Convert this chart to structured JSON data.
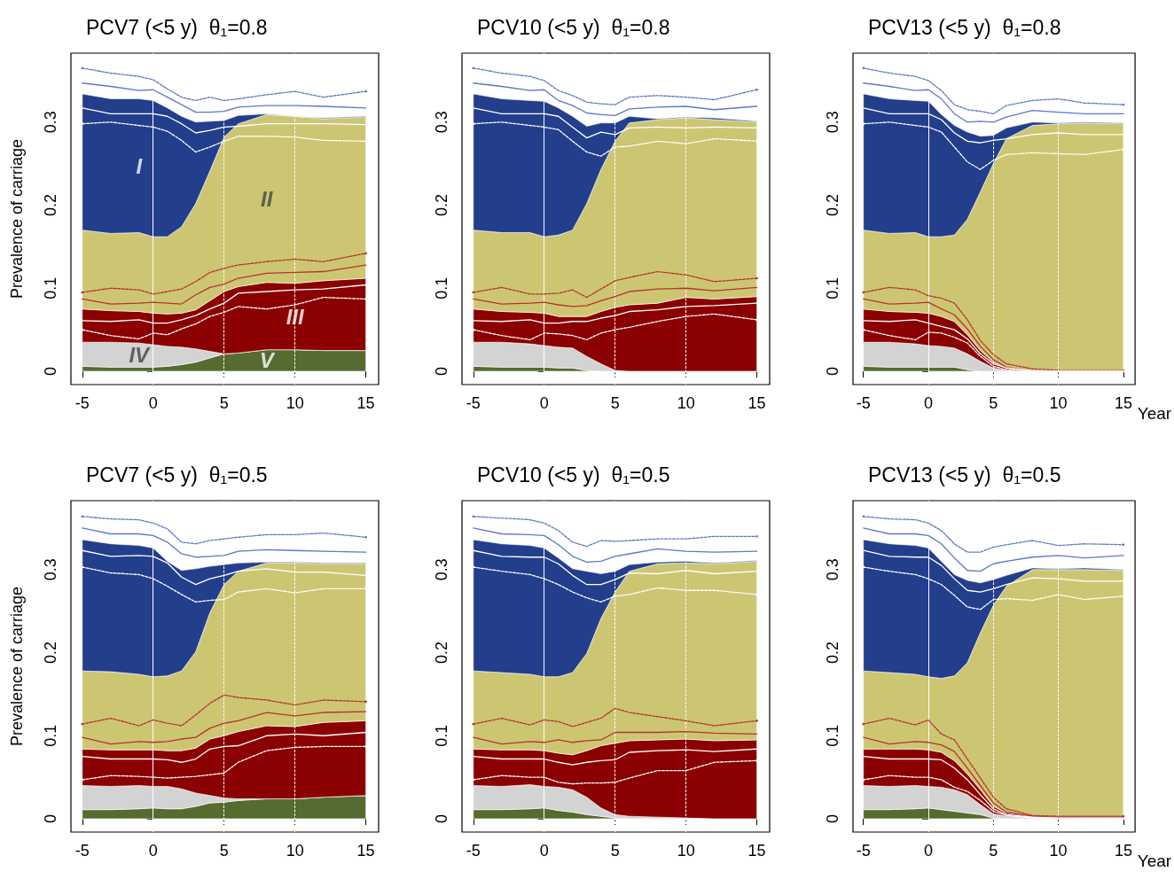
{
  "chart_data": [
    {
      "type": "area",
      "title": "PCV7 (<5 y)  θ₁=0.8",
      "ylabel": "Prevalence of carriage",
      "stacked": true,
      "xlim": [
        -5.8,
        15.9
      ],
      "xticks": [
        -5,
        0,
        5,
        10,
        15
      ],
      "ylim": [
        -0.016,
        0.383
      ],
      "yticks": [
        0,
        0.1,
        0.2,
        0.3
      ],
      "x": [
        -5,
        -3,
        -1,
        0,
        1,
        2,
        3,
        4,
        5,
        6,
        8,
        10,
        12,
        15
      ],
      "ref_lines": [
        {
          "axis": "x",
          "value": 0,
          "color": "#ffffff",
          "line_style": "solid"
        },
        {
          "axis": "x",
          "value": 5,
          "color": "#ffffff",
          "line_style": "dashed"
        },
        {
          "axis": "x",
          "value": 10,
          "color": "#ffffff",
          "line_style": "dashed"
        }
      ],
      "series": [
        {
          "type": "area",
          "name": "V",
          "color": "#556b2f",
          "values": [
            0.006,
            0.005,
            0.005,
            0.005,
            0.006,
            0.008,
            0.011,
            0.016,
            0.021,
            0.022,
            0.026,
            0.026,
            0.025,
            0.025
          ]
        },
        {
          "type": "area",
          "name": "IV",
          "color": "#d3d3d3",
          "values": [
            0.029,
            0.03,
            0.029,
            0.027,
            0.024,
            0.021,
            0.016,
            0.008,
            0,
            0,
            0,
            0,
            0,
            0
          ]
        },
        {
          "type": "area",
          "name": "III",
          "color": "#8b0000",
          "values": [
            0.04,
            0.038,
            0.038,
            0.038,
            0.039,
            0.041,
            0.047,
            0.061,
            0.075,
            0.08,
            0.081,
            0.08,
            0.084,
            0.087
          ]
        },
        {
          "type": "area",
          "name": "II",
          "color": "#ccc673",
          "values": [
            0.095,
            0.093,
            0.095,
            0.092,
            0.093,
            0.104,
            0.128,
            0.156,
            0.186,
            0.196,
            0.202,
            0.201,
            0.195,
            0.194
          ]
        },
        {
          "type": "area",
          "name": "I",
          "color": "#233e8b",
          "values": [
            0.164,
            0.162,
            0.161,
            0.164,
            0.155,
            0.133,
            0.098,
            0.06,
            0.02,
            0.01,
            0.001,
            0,
            0.001,
            0.001
          ]
        },
        {
          "type": "line",
          "color": "#5a78c6",
          "line_style": "solid",
          "values": [
            0.347,
            0.343,
            0.338,
            0.339,
            0.33,
            0.321,
            0.312,
            0.312,
            0.313,
            0.318,
            0.32,
            0.32,
            0.319,
            0.317
          ]
        },
        {
          "type": "line",
          "color": "#5a78c6",
          "line_style": "dashed",
          "values": [
            0.365,
            0.359,
            0.355,
            0.351,
            0.34,
            0.33,
            0.326,
            0.33,
            0.326,
            0.328,
            0.333,
            0.337,
            0.33,
            0.337
          ]
        },
        {
          "type": "line",
          "color": "#ffffff",
          "line_style": "solid",
          "values": [
            0.317,
            0.31,
            0.31,
            0.31,
            0.307,
            0.298,
            0.287,
            0.29,
            0.294,
            0.295,
            0.298,
            0.298,
            0.298,
            0.297
          ]
        },
        {
          "type": "line",
          "color": "#ffffff",
          "line_style": "dashed",
          "values": [
            0.298,
            0.3,
            0.296,
            0.294,
            0.289,
            0.278,
            0.264,
            0.27,
            0.277,
            0.283,
            0.283,
            0.282,
            0.278,
            0.277
          ]
        },
        {
          "type": "line",
          "color": "#b8312f",
          "line_style": "dashed",
          "values": [
            0.095,
            0.1,
            0.098,
            0.093,
            0.096,
            0.099,
            0.108,
            0.119,
            0.124,
            0.128,
            0.132,
            0.135,
            0.132,
            0.142
          ]
        },
        {
          "type": "line",
          "color": "#b8312f",
          "line_style": "solid",
          "values": [
            0.087,
            0.081,
            0.082,
            0.083,
            0.082,
            0.081,
            0.092,
            0.101,
            0.105,
            0.112,
            0.118,
            0.119,
            0.12,
            0.128
          ]
        },
        {
          "type": "line",
          "color": "#ffffff",
          "line_style": "solid",
          "values": [
            0.061,
            0.06,
            0.062,
            0.058,
            0.058,
            0.062,
            0.067,
            0.075,
            0.082,
            0.094,
            0.096,
            0.098,
            0.099,
            0.104
          ]
        },
        {
          "type": "line",
          "color": "#ffffff",
          "line_style": "dashed",
          "values": [
            0.05,
            0.043,
            0.039,
            0.046,
            0.044,
            0.051,
            0.057,
            0.066,
            0.071,
            0.078,
            0.075,
            0.08,
            0.089,
            0.087
          ]
        }
      ]
    },
    {
      "type": "area",
      "title": "PCV10 (<5 y)  θ₁=0.8",
      "stacked": true,
      "xlim": [
        -5.8,
        15.9
      ],
      "xticks": [
        -5,
        0,
        5,
        10,
        15
      ],
      "ylim": [
        -0.016,
        0.383
      ],
      "yticks": [
        0,
        0.1,
        0.2,
        0.3
      ],
      "x": [
        -5,
        -3,
        -1,
        0,
        1,
        2,
        3,
        4,
        5,
        6,
        8,
        10,
        12,
        15
      ],
      "ref_lines": [
        {
          "axis": "x",
          "value": 0,
          "color": "#ffffff",
          "line_style": "solid"
        },
        {
          "axis": "x",
          "value": 5,
          "color": "#ffffff",
          "line_style": "dashed"
        },
        {
          "axis": "x",
          "value": 10,
          "color": "#ffffff",
          "line_style": "dashed"
        }
      ],
      "series": [
        {
          "type": "area",
          "color": "#556b2f",
          "values": [
            0.006,
            0.005,
            0.005,
            0.005,
            0.004,
            0.004,
            0.001,
            0,
            0,
            0,
            0,
            0,
            0,
            0
          ]
        },
        {
          "type": "area",
          "color": "#d3d3d3",
          "values": [
            0.029,
            0.03,
            0.028,
            0.026,
            0.025,
            0.024,
            0.017,
            0.009,
            0.001,
            0,
            0,
            0,
            0,
            0
          ]
        },
        {
          "type": "area",
          "color": "#8b0000",
          "values": [
            0.04,
            0.037,
            0.038,
            0.039,
            0.037,
            0.038,
            0.048,
            0.063,
            0.076,
            0.08,
            0.082,
            0.089,
            0.087,
            0.09
          ]
        },
        {
          "type": "area",
          "color": "#ccc673",
          "values": [
            0.095,
            0.095,
            0.096,
            0.092,
            0.098,
            0.104,
            0.136,
            0.171,
            0.2,
            0.219,
            0.221,
            0.216,
            0.216,
            0.21
          ]
        },
        {
          "type": "area",
          "color": "#233e8b",
          "values": [
            0.164,
            0.161,
            0.159,
            0.163,
            0.153,
            0.137,
            0.093,
            0.056,
            0.022,
            0.008,
            0.001,
            0.001,
            0.002,
            0.001
          ]
        },
        {
          "type": "line",
          "color": "#5a78c6",
          "line_style": "solid",
          "values": [
            0.347,
            0.343,
            0.338,
            0.339,
            0.326,
            0.32,
            0.311,
            0.309,
            0.308,
            0.316,
            0.318,
            0.319,
            0.315,
            0.319
          ]
        },
        {
          "type": "line",
          "color": "#5a78c6",
          "line_style": "dashed",
          "values": [
            0.365,
            0.359,
            0.355,
            0.35,
            0.338,
            0.332,
            0.324,
            0.322,
            0.321,
            0.33,
            0.332,
            0.33,
            0.327,
            0.339
          ]
        },
        {
          "type": "line",
          "color": "#ffffff",
          "line_style": "solid",
          "values": [
            0.317,
            0.31,
            0.31,
            0.31,
            0.307,
            0.294,
            0.281,
            0.288,
            0.285,
            0.293,
            0.294,
            0.293,
            0.294,
            0.293
          ]
        },
        {
          "type": "line",
          "color": "#ffffff",
          "line_style": "dashed",
          "values": [
            0.298,
            0.3,
            0.296,
            0.294,
            0.291,
            0.277,
            0.264,
            0.259,
            0.27,
            0.271,
            0.277,
            0.274,
            0.28,
            0.277
          ]
        },
        {
          "type": "line",
          "color": "#b8312f",
          "line_style": "dashed",
          "values": [
            0.095,
            0.101,
            0.093,
            0.093,
            0.094,
            0.098,
            0.089,
            0.099,
            0.109,
            0.113,
            0.12,
            0.116,
            0.108,
            0.112
          ]
        },
        {
          "type": "line",
          "color": "#b8312f",
          "line_style": "solid",
          "values": [
            0.087,
            0.081,
            0.082,
            0.083,
            0.08,
            0.078,
            0.079,
            0.085,
            0.09,
            0.096,
            0.099,
            0.1,
            0.097,
            0.101
          ]
        },
        {
          "type": "line",
          "color": "#ffffff",
          "line_style": "solid",
          "values": [
            0.061,
            0.06,
            0.062,
            0.058,
            0.058,
            0.06,
            0.06,
            0.064,
            0.067,
            0.072,
            0.074,
            0.078,
            0.079,
            0.082
          ]
        },
        {
          "type": "line",
          "color": "#ffffff",
          "line_style": "dashed",
          "values": [
            0.05,
            0.043,
            0.038,
            0.046,
            0.045,
            0.043,
            0.038,
            0.046,
            0.05,
            0.053,
            0.06,
            0.066,
            0.069,
            0.062
          ]
        }
      ]
    },
    {
      "type": "area",
      "title": "PCV13 (<5 y)  θ₁=0.8",
      "xlabel": "Year",
      "stacked": true,
      "xlim": [
        -5.8,
        15.9
      ],
      "xticks": [
        -5,
        0,
        5,
        10,
        15
      ],
      "ylim": [
        -0.016,
        0.383
      ],
      "yticks": [
        0,
        0.1,
        0.2,
        0.3
      ],
      "x": [
        -5,
        -3,
        -1,
        0,
        1,
        2,
        3,
        4,
        5,
        6,
        8,
        10,
        12,
        15
      ],
      "ref_lines": [
        {
          "axis": "x",
          "value": 0,
          "color": "#ffffff",
          "line_style": "solid"
        },
        {
          "axis": "x",
          "value": 5,
          "color": "#ffffff",
          "line_style": "dashed"
        },
        {
          "axis": "x",
          "value": 10,
          "color": "#ffffff",
          "line_style": "dashed"
        }
      ],
      "series": [
        {
          "type": "area",
          "color": "#556b2f",
          "values": [
            0.006,
            0.005,
            0.005,
            0.005,
            0.005,
            0.005,
            0.002,
            0,
            0,
            0,
            0,
            0,
            0,
            0
          ]
        },
        {
          "type": "area",
          "color": "#d3d3d3",
          "values": [
            0.029,
            0.03,
            0.028,
            0.026,
            0.025,
            0.023,
            0.019,
            0.012,
            0.004,
            0.001,
            0,
            0,
            0,
            0
          ]
        },
        {
          "type": "area",
          "color": "#8b0000",
          "values": [
            0.04,
            0.037,
            0.038,
            0.039,
            0.036,
            0.032,
            0.023,
            0.013,
            0.007,
            0.003,
            0.001,
            0,
            0,
            0
          ]
        },
        {
          "type": "area",
          "color": "#ccc673",
          "values": [
            0.095,
            0.094,
            0.096,
            0.092,
            0.096,
            0.104,
            0.139,
            0.191,
            0.239,
            0.276,
            0.295,
            0.298,
            0.299,
            0.298
          ]
        },
        {
          "type": "area",
          "color": "#233e8b",
          "values": [
            0.164,
            0.162,
            0.159,
            0.163,
            0.147,
            0.132,
            0.105,
            0.067,
            0.034,
            0.013,
            0.004,
            0.001,
            0.001,
            0.001
          ]
        },
        {
          "type": "line",
          "color": "#5a78c6",
          "line_style": "solid",
          "values": [
            0.347,
            0.343,
            0.338,
            0.339,
            0.328,
            0.31,
            0.3,
            0.301,
            0.3,
            0.306,
            0.314,
            0.312,
            0.31,
            0.31
          ]
        },
        {
          "type": "line",
          "color": "#5a78c6",
          "line_style": "dashed",
          "values": [
            0.365,
            0.359,
            0.355,
            0.35,
            0.338,
            0.321,
            0.315,
            0.313,
            0.31,
            0.32,
            0.326,
            0.328,
            0.323,
            0.321
          ]
        },
        {
          "type": "line",
          "color": "#ffffff",
          "line_style": "solid",
          "values": [
            0.317,
            0.31,
            0.31,
            0.31,
            0.303,
            0.287,
            0.277,
            0.275,
            0.278,
            0.28,
            0.285,
            0.287,
            0.285,
            0.285
          ]
        },
        {
          "type": "line",
          "color": "#ffffff",
          "line_style": "dashed",
          "values": [
            0.298,
            0.3,
            0.296,
            0.294,
            0.288,
            0.27,
            0.252,
            0.243,
            0.254,
            0.261,
            0.263,
            0.262,
            0.261,
            0.267
          ]
        },
        {
          "type": "line",
          "color": "#b8312f",
          "line_style": "dashed",
          "values": [
            0.095,
            0.101,
            0.098,
            0.091,
            0.088,
            0.082,
            0.062,
            0.037,
            0.02,
            0.009,
            0.003,
            0.001,
            0.001,
            0.001
          ]
        },
        {
          "type": "line",
          "color": "#b8312f",
          "line_style": "solid",
          "values": [
            0.087,
            0.081,
            0.082,
            0.083,
            0.075,
            0.068,
            0.051,
            0.03,
            0.014,
            0.005,
            0.001,
            0,
            0,
            0
          ]
        },
        {
          "type": "line",
          "color": "#ffffff",
          "line_style": "solid",
          "values": [
            0.061,
            0.06,
            0.062,
            0.058,
            0.054,
            0.05,
            0.039,
            0.021,
            0.009,
            0.004,
            0.001,
            0,
            0,
            0
          ]
        },
        {
          "type": "line",
          "color": "#ffffff",
          "line_style": "dashed",
          "values": [
            0.05,
            0.043,
            0.038,
            0.047,
            0.046,
            0.041,
            0.034,
            0.018,
            0.006,
            0.002,
            0,
            0,
            0,
            0
          ]
        }
      ]
    },
    {
      "type": "area",
      "title": "PCV7 (<5 y)  θ₁=0.5",
      "ylabel": "Prevalence of carriage",
      "stacked": true,
      "xlim": [
        -5.8,
        15.9
      ],
      "xticks": [
        -5,
        0,
        5,
        10,
        15
      ],
      "ylim": [
        -0.016,
        0.383
      ],
      "yticks": [
        0,
        0.1,
        0.2,
        0.3
      ],
      "x": [
        -5,
        -3,
        -1,
        0,
        1,
        2,
        3,
        4,
        5,
        6,
        8,
        10,
        12,
        15
      ],
      "ref_lines": [
        {
          "axis": "x",
          "value": 0,
          "color": "#ffffff",
          "line_style": "solid"
        },
        {
          "axis": "x",
          "value": 5,
          "color": "#ffffff",
          "line_style": "dashed"
        },
        {
          "axis": "x",
          "value": 10,
          "color": "#ffffff",
          "line_style": "dashed"
        }
      ],
      "series": [
        {
          "type": "area",
          "color": "#556b2f",
          "values": [
            0.011,
            0.011,
            0.012,
            0.013,
            0.012,
            0.012,
            0.015,
            0.019,
            0.02,
            0.022,
            0.024,
            0.024,
            0.026,
            0.028
          ]
        },
        {
          "type": "area",
          "color": "#d3d3d3",
          "values": [
            0.029,
            0.028,
            0.028,
            0.026,
            0.027,
            0.024,
            0.016,
            0.009,
            0.005,
            0.002,
            0,
            0,
            0,
            0
          ]
        },
        {
          "type": "area",
          "color": "#8b0000",
          "values": [
            0.044,
            0.044,
            0.043,
            0.044,
            0.043,
            0.046,
            0.054,
            0.068,
            0.075,
            0.081,
            0.088,
            0.087,
            0.09,
            0.09
          ]
        },
        {
          "type": "area",
          "color": "#ccc673",
          "values": [
            0.094,
            0.094,
            0.091,
            0.088,
            0.09,
            0.096,
            0.116,
            0.152,
            0.182,
            0.193,
            0.196,
            0.197,
            0.191,
            0.189
          ]
        },
        {
          "type": "area",
          "color": "#233e8b",
          "values": [
            0.158,
            0.154,
            0.155,
            0.155,
            0.138,
            0.121,
            0.1,
            0.056,
            0.024,
            0.01,
            0.001,
            0.001,
            0.001,
            0.001
          ]
        },
        {
          "type": "line",
          "color": "#5a78c6",
          "line_style": "solid",
          "values": [
            0.35,
            0.343,
            0.343,
            0.341,
            0.333,
            0.319,
            0.315,
            0.316,
            0.317,
            0.322,
            0.324,
            0.323,
            0.322,
            0.321
          ]
        },
        {
          "type": "line",
          "color": "#5a78c6",
          "line_style": "dashed",
          "values": [
            0.364,
            0.361,
            0.36,
            0.356,
            0.349,
            0.333,
            0.331,
            0.335,
            0.337,
            0.339,
            0.342,
            0.342,
            0.344,
            0.339
          ]
        },
        {
          "type": "line",
          "color": "#ffffff",
          "line_style": "solid",
          "values": [
            0.323,
            0.316,
            0.317,
            0.316,
            0.308,
            0.291,
            0.282,
            0.289,
            0.293,
            0.298,
            0.301,
            0.297,
            0.297,
            0.293
          ]
        },
        {
          "type": "line",
          "color": "#ffffff",
          "line_style": "dashed",
          "values": [
            0.303,
            0.296,
            0.294,
            0.289,
            0.28,
            0.27,
            0.261,
            0.263,
            0.264,
            0.273,
            0.277,
            0.272,
            0.277,
            0.277
          ]
        },
        {
          "type": "line",
          "color": "#b8312f",
          "line_style": "dashed",
          "values": [
            0.114,
            0.121,
            0.112,
            0.119,
            0.115,
            0.112,
            0.125,
            0.139,
            0.149,
            0.146,
            0.143,
            0.137,
            0.143,
            0.141
          ]
        },
        {
          "type": "line",
          "color": "#b8312f",
          "line_style": "solid",
          "values": [
            0.098,
            0.09,
            0.093,
            0.092,
            0.093,
            0.096,
            0.098,
            0.109,
            0.115,
            0.118,
            0.128,
            0.124,
            0.128,
            0.129
          ]
        },
        {
          "type": "line",
          "color": "#ffffff",
          "line_style": "solid",
          "values": [
            0.075,
            0.072,
            0.072,
            0.072,
            0.071,
            0.068,
            0.072,
            0.084,
            0.087,
            0.088,
            0.1,
            0.102,
            0.1,
            0.104
          ]
        },
        {
          "type": "line",
          "color": "#ffffff",
          "line_style": "dashed",
          "values": [
            0.047,
            0.052,
            0.051,
            0.05,
            0.049,
            0.05,
            0.051,
            0.053,
            0.055,
            0.068,
            0.082,
            0.086,
            0.087,
            0.087
          ]
        }
      ]
    },
    {
      "type": "area",
      "title": "PCV10 (<5 y)  θ₁=0.5",
      "stacked": true,
      "xlim": [
        -5.8,
        15.9
      ],
      "xticks": [
        -5,
        0,
        5,
        10,
        15
      ],
      "ylim": [
        -0.016,
        0.383
      ],
      "yticks": [
        0,
        0.1,
        0.2,
        0.3
      ],
      "x": [
        -5,
        -3,
        -1,
        0,
        1,
        2,
        3,
        4,
        5,
        6,
        8,
        10,
        12,
        15
      ],
      "ref_lines": [
        {
          "axis": "x",
          "value": 0,
          "color": "#ffffff",
          "line_style": "solid"
        },
        {
          "axis": "x",
          "value": 5,
          "color": "#ffffff",
          "line_style": "dashed"
        },
        {
          "axis": "x",
          "value": 10,
          "color": "#ffffff",
          "line_style": "dashed"
        }
      ],
      "series": [
        {
          "type": "area",
          "color": "#556b2f",
          "values": [
            0.011,
            0.011,
            0.012,
            0.013,
            0.01,
            0.008,
            0.005,
            0.003,
            0.001,
            0,
            0,
            0,
            0,
            0
          ]
        },
        {
          "type": "area",
          "color": "#d3d3d3",
          "values": [
            0.029,
            0.028,
            0.029,
            0.026,
            0.028,
            0.027,
            0.021,
            0.01,
            0.004,
            0.003,
            0.002,
            0.001,
            0,
            0
          ]
        },
        {
          "type": "area",
          "color": "#8b0000",
          "values": [
            0.044,
            0.044,
            0.042,
            0.043,
            0.041,
            0.042,
            0.056,
            0.075,
            0.086,
            0.091,
            0.093,
            0.095,
            0.094,
            0.095
          ]
        },
        {
          "type": "area",
          "color": "#ccc673",
          "values": [
            0.094,
            0.093,
            0.091,
            0.089,
            0.092,
            0.099,
            0.117,
            0.153,
            0.182,
            0.204,
            0.212,
            0.212,
            0.213,
            0.215
          ]
        },
        {
          "type": "area",
          "color": "#233e8b",
          "values": [
            0.158,
            0.155,
            0.155,
            0.155,
            0.143,
            0.125,
            0.099,
            0.054,
            0.025,
            0.008,
            0.002,
            0.002,
            0.001,
            0.001
          ]
        },
        {
          "type": "line",
          "color": "#5a78c6",
          "line_style": "solid",
          "values": [
            0.35,
            0.343,
            0.342,
            0.341,
            0.33,
            0.316,
            0.309,
            0.31,
            0.316,
            0.319,
            0.325,
            0.322,
            0.321,
            0.322
          ]
        },
        {
          "type": "line",
          "color": "#5a78c6",
          "line_style": "dashed",
          "values": [
            0.364,
            0.362,
            0.36,
            0.356,
            0.347,
            0.333,
            0.328,
            0.335,
            0.334,
            0.335,
            0.337,
            0.337,
            0.34,
            0.34
          ]
        },
        {
          "type": "line",
          "color": "#ffffff",
          "line_style": "solid",
          "values": [
            0.323,
            0.316,
            0.315,
            0.315,
            0.307,
            0.293,
            0.282,
            0.282,
            0.288,
            0.296,
            0.295,
            0.299,
            0.295,
            0.298
          ]
        },
        {
          "type": "line",
          "color": "#ffffff",
          "line_style": "dashed",
          "values": [
            0.303,
            0.298,
            0.294,
            0.289,
            0.282,
            0.273,
            0.266,
            0.261,
            0.268,
            0.27,
            0.278,
            0.275,
            0.275,
            0.27
          ]
        },
        {
          "type": "line",
          "color": "#b8312f",
          "line_style": "dashed",
          "values": [
            0.114,
            0.121,
            0.113,
            0.119,
            0.117,
            0.111,
            0.116,
            0.121,
            0.133,
            0.128,
            0.123,
            0.118,
            0.112,
            0.118
          ]
        },
        {
          "type": "line",
          "color": "#b8312f",
          "line_style": "solid",
          "values": [
            0.098,
            0.09,
            0.093,
            0.092,
            0.095,
            0.092,
            0.094,
            0.095,
            0.104,
            0.104,
            0.104,
            0.105,
            0.103,
            0.102
          ]
        },
        {
          "type": "line",
          "color": "#ffffff",
          "line_style": "solid",
          "values": [
            0.075,
            0.072,
            0.072,
            0.072,
            0.068,
            0.065,
            0.068,
            0.07,
            0.071,
            0.08,
            0.082,
            0.083,
            0.081,
            0.084
          ]
        },
        {
          "type": "line",
          "color": "#ffffff",
          "line_style": "dashed",
          "values": [
            0.047,
            0.052,
            0.05,
            0.05,
            0.044,
            0.042,
            0.043,
            0.043,
            0.044,
            0.049,
            0.058,
            0.058,
            0.068,
            0.07
          ]
        }
      ]
    },
    {
      "type": "area",
      "title": "PCV13 (<5 y)  θ₁=0.5",
      "xlabel": "Year",
      "stacked": true,
      "xlim": [
        -5.8,
        15.9
      ],
      "xticks": [
        -5,
        0,
        5,
        10,
        15
      ],
      "ylim": [
        -0.016,
        0.383
      ],
      "yticks": [
        0,
        0.1,
        0.2,
        0.3
      ],
      "x": [
        -5,
        -3,
        -1,
        0,
        1,
        2,
        3,
        4,
        5,
        6,
        8,
        10,
        12,
        15
      ],
      "ref_lines": [
        {
          "axis": "x",
          "value": 0,
          "color": "#ffffff",
          "line_style": "solid"
        },
        {
          "axis": "x",
          "value": 5,
          "color": "#ffffff",
          "line_style": "dashed"
        },
        {
          "axis": "x",
          "value": 10,
          "color": "#ffffff",
          "line_style": "dashed"
        }
      ],
      "series": [
        {
          "type": "area",
          "color": "#556b2f",
          "values": [
            0.011,
            0.011,
            0.012,
            0.013,
            0.011,
            0.009,
            0.007,
            0.005,
            0.001,
            0,
            0,
            0,
            0,
            0
          ]
        },
        {
          "type": "area",
          "color": "#d3d3d3",
          "values": [
            0.029,
            0.028,
            0.028,
            0.026,
            0.027,
            0.026,
            0.022,
            0.012,
            0.005,
            0.003,
            0.002,
            0,
            0,
            0
          ]
        },
        {
          "type": "area",
          "color": "#8b0000",
          "values": [
            0.044,
            0.045,
            0.044,
            0.044,
            0.042,
            0.035,
            0.025,
            0.018,
            0.009,
            0.004,
            0.001,
            0.002,
            0.001,
            0.001
          ]
        },
        {
          "type": "area",
          "color": "#ccc673",
          "values": [
            0.094,
            0.092,
            0.09,
            0.088,
            0.089,
            0.102,
            0.134,
            0.189,
            0.242,
            0.273,
            0.297,
            0.298,
            0.299,
            0.298
          ]
        },
        {
          "type": "area",
          "color": "#233e8b",
          "values": [
            0.158,
            0.155,
            0.155,
            0.155,
            0.141,
            0.122,
            0.099,
            0.06,
            0.031,
            0.013,
            0.002,
            0.001,
            0.002,
            0.001
          ]
        },
        {
          "type": "line",
          "color": "#5a78c6",
          "line_style": "solid",
          "values": [
            0.35,
            0.343,
            0.343,
            0.341,
            0.331,
            0.314,
            0.299,
            0.298,
            0.307,
            0.31,
            0.315,
            0.317,
            0.314,
            0.317
          ]
        },
        {
          "type": "line",
          "color": "#5a78c6",
          "line_style": "dashed",
          "values": [
            0.364,
            0.361,
            0.36,
            0.356,
            0.347,
            0.331,
            0.321,
            0.321,
            0.327,
            0.33,
            0.335,
            0.329,
            0.331,
            0.33
          ]
        },
        {
          "type": "line",
          "color": "#ffffff",
          "line_style": "solid",
          "values": [
            0.323,
            0.316,
            0.315,
            0.315,
            0.305,
            0.289,
            0.275,
            0.273,
            0.277,
            0.282,
            0.29,
            0.289,
            0.286,
            0.286
          ]
        },
        {
          "type": "line",
          "color": "#ffffff",
          "line_style": "dashed",
          "values": [
            0.303,
            0.298,
            0.294,
            0.289,
            0.282,
            0.269,
            0.255,
            0.252,
            0.264,
            0.265,
            0.263,
            0.27,
            0.264,
            0.268
          ]
        },
        {
          "type": "line",
          "color": "#b8312f",
          "line_style": "dashed",
          "values": [
            0.114,
            0.121,
            0.113,
            0.119,
            0.102,
            0.095,
            0.072,
            0.049,
            0.026,
            0.012,
            0.004,
            0.003,
            0.003,
            0.003
          ]
        },
        {
          "type": "line",
          "color": "#b8312f",
          "line_style": "solid",
          "values": [
            0.098,
            0.09,
            0.093,
            0.092,
            0.089,
            0.081,
            0.061,
            0.04,
            0.019,
            0.008,
            0.003,
            0.002,
            0.002,
            0.002
          ]
        },
        {
          "type": "line",
          "color": "#ffffff",
          "line_style": "solid",
          "values": [
            0.075,
            0.072,
            0.072,
            0.072,
            0.071,
            0.061,
            0.047,
            0.029,
            0.012,
            0.005,
            0.002,
            0.001,
            0.001,
            0.001
          ]
        },
        {
          "type": "line",
          "color": "#ffffff",
          "line_style": "dashed",
          "values": [
            0.047,
            0.052,
            0.05,
            0.05,
            0.047,
            0.038,
            0.033,
            0.022,
            0.009,
            0.004,
            0.001,
            0,
            0,
            0
          ]
        }
      ]
    }
  ]
}
